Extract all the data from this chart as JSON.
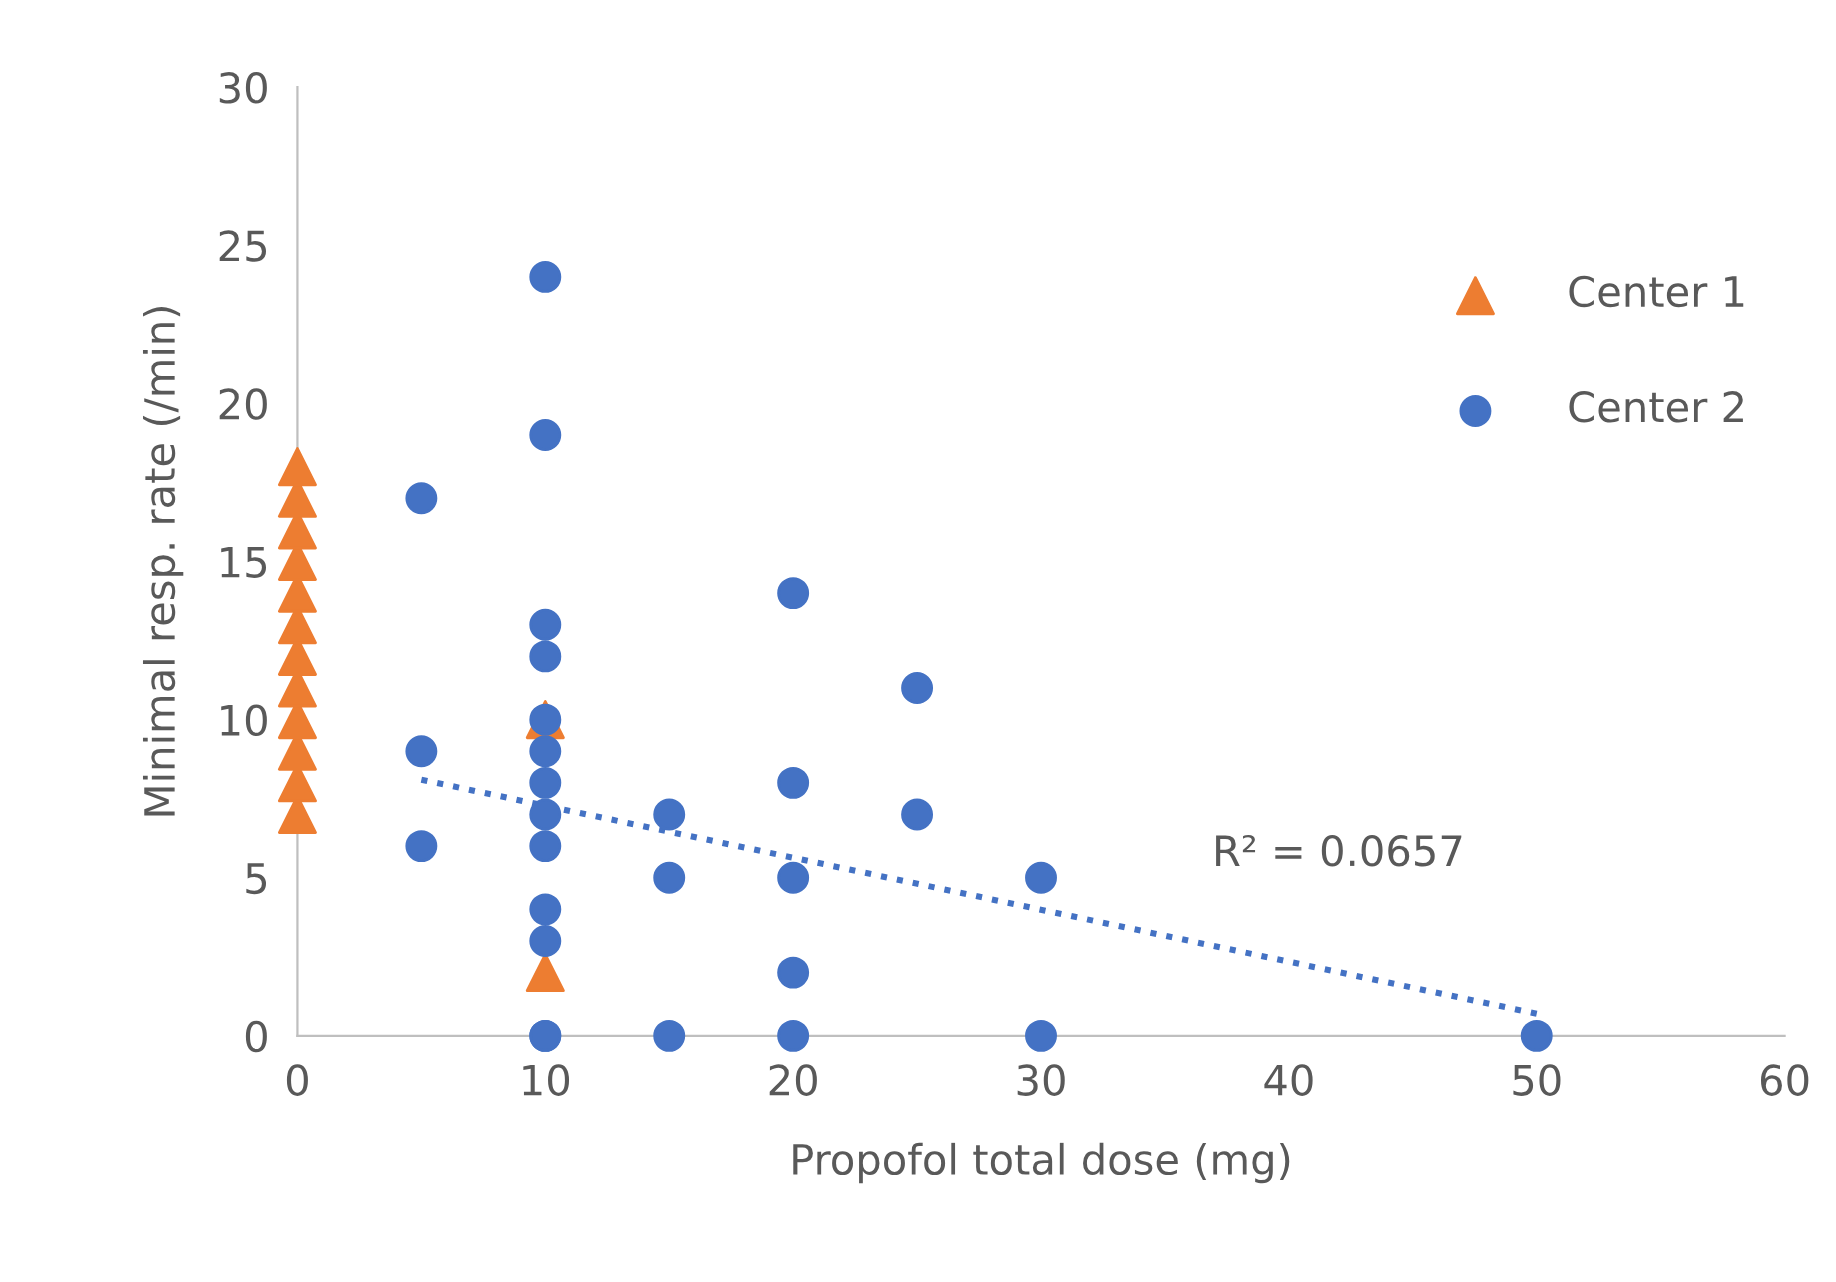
{
  "chart_data": {
    "type": "scatter",
    "xlabel": "Propofol total dose (mg)",
    "ylabel": "Minimal resp. rate (/min)",
    "xlim": [
      0,
      60
    ],
    "xticks": [
      0,
      10,
      20,
      30,
      40,
      50,
      60
    ],
    "ylim": [
      0,
      30
    ],
    "yticks": [
      0,
      5,
      10,
      15,
      20,
      25,
      30
    ],
    "grid": false,
    "legend": "right",
    "series": [
      {
        "name": "Center 1",
        "color": "#ed7d31",
        "marker": "triangle",
        "x": [
          0,
          0,
          0,
          0,
          0,
          0,
          0,
          0,
          0,
          0,
          0,
          0,
          10,
          10
        ],
        "values": [
          7,
          8,
          9,
          10,
          11,
          12,
          13,
          14,
          15,
          16,
          17,
          18,
          10,
          2
        ]
      },
      {
        "name": "Center 2",
        "color": "#4472c4",
        "marker": "circle",
        "x": [
          5,
          5,
          5,
          10,
          10,
          10,
          10,
          10,
          10,
          10,
          10,
          10,
          10,
          10,
          10,
          10,
          15,
          15,
          15,
          20,
          20,
          20,
          20,
          20,
          25,
          25,
          30,
          30,
          50
        ],
        "values": [
          17,
          9,
          6,
          24,
          19,
          13,
          12,
          10,
          9,
          8,
          7,
          6,
          4,
          3,
          0,
          0,
          7,
          5,
          0,
          14,
          8,
          5,
          2,
          0,
          11,
          7,
          5,
          0,
          0
        ]
      },
      {
        "type": "line",
        "color": "#4472c4",
        "line_style": "dotted",
        "marker": "none",
        "x": [
          5,
          50
        ],
        "values": [
          8.1,
          0.7
        ]
      }
    ],
    "annotations": [
      "R² = 0.0657"
    ]
  }
}
